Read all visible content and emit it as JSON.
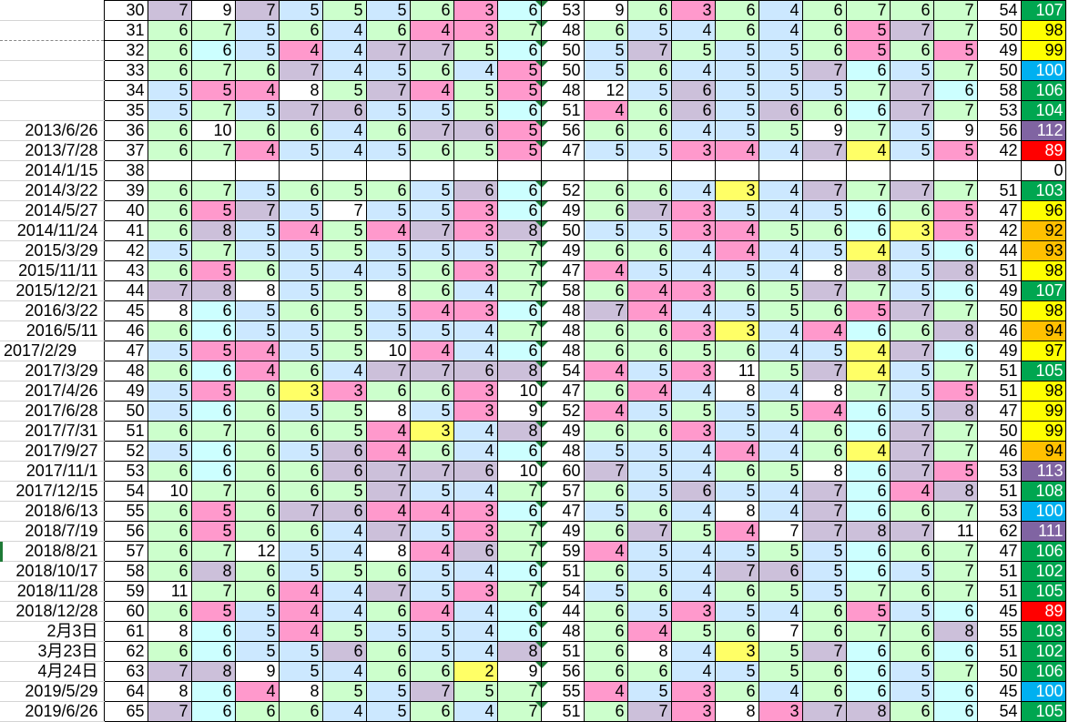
{
  "cell_colors": {
    "P": "#ccc0da",
    "G": "#ccffcc",
    "B": "#cce8ff",
    "C": "#ccffff",
    "K": "#ff99cc",
    "Y": "#ffff66",
    "W": "#ffffff"
  },
  "total_colors": {
    "green": "#00a650",
    "yellow": "#ffff00",
    "orange": "#ffc000",
    "blue": "#00b0f0",
    "red": "#ff0000",
    "purple": "#8064a2",
    "white": "#ffffff"
  },
  "rows": [
    {
      "date": "",
      "no": 30,
      "a": "7P 9W 7P 5B 5G 5B 6G 3K 6C",
      "s1": 53,
      "b": "9W 6G 3K 6G 4B 6G 7G 6G 7G",
      "s2": 54,
      "total": 107,
      "tc": "green"
    },
    {
      "date": "",
      "no": 31,
      "a": "6G 7G 5B 6G 4B 6G 4K 3K 7G",
      "s1": 48,
      "b": "6G 5B 4B 6G 4B 6G 5K 7P 7G",
      "s2": 50,
      "total": 98,
      "tc": "yellow"
    },
    {
      "date": "",
      "no": 32,
      "a": "6G 6C 5B 4K 4B 7P 7P 5G 6C",
      "s1": 50,
      "b": "5B 7P 5G 5B 5B 6G 5K 6G 5K",
      "s2": 49,
      "total": 99,
      "tc": "yellow"
    },
    {
      "date": "",
      "no": 33,
      "a": "6G 7G 6G 7P 4B 5B 6G 4B 5K",
      "s1": 50,
      "b": "5B 6G 4B 5B 5B 7P 6C 5B 7G",
      "s2": 50,
      "total": 100,
      "tc": "blue"
    },
    {
      "date": "",
      "no": 34,
      "a": "5B 5K 4K 8W 5G 7P 4K 5G 5K",
      "s1": 48,
      "b": "12W 5B 6P 5B 5B 5B 7G 7P 6C",
      "s2": 58,
      "total": 106,
      "tc": "green"
    },
    {
      "date": "",
      "no": 35,
      "a": "5B 7G 5B 7P 6P 5B 5B 5G 6C",
      "s1": 51,
      "b": "4K 6G 6P 5B 6P 6G 6C 7P 7G",
      "s2": 53,
      "total": 104,
      "tc": "green"
    },
    {
      "date": "2013/6/26",
      "no": 36,
      "a": "6G 10W 6G 6G 4B 6G 7P 6P 5K",
      "s1": 56,
      "b": "6G 6G 4B 5B 5G 9W 7G 5B 9W",
      "s2": 56,
      "total": 112,
      "tc": "purple"
    },
    {
      "date": "2013/7/28",
      "no": 37,
      "a": "6G 7G 4K 5B 4B 5B 6G 5G 5K",
      "s1": 47,
      "b": "5B 5B 3K 4K 4B 7P 4Y 5B 5K",
      "s2": 42,
      "total": 89,
      "tc": "red"
    },
    {
      "date": "2014/1/15",
      "no": 38,
      "a": "",
      "s1": "",
      "b": "",
      "s2": "",
      "total": 0,
      "tc": "white"
    },
    {
      "date": "2014/3/22",
      "no": 39,
      "a": "6G 7G 5B 6G 5G 6G 5B 6P 6C",
      "s1": 52,
      "b": "6G 6G 4B 3Y 4B 7P 7G 7P 7G",
      "s2": 51,
      "total": 103,
      "tc": "green"
    },
    {
      "date": "2014/5/27",
      "no": 40,
      "a": "6G 5K 7P 5B 7W 5B 5B 3K 6C",
      "s1": 49,
      "b": "6G 7P 3K 5B 4B 5B 6C 6G 5K",
      "s2": 47,
      "total": 96,
      "tc": "yellow"
    },
    {
      "date": "2014/11/24",
      "no": 41,
      "a": "6G 8P 5B 4K 5G 4K 7P 3K 8P",
      "s1": 50,
      "b": "5B 5B 3K 4K 5G 6G 6C 3Y 5K",
      "s2": 42,
      "total": 92,
      "tc": "orange"
    },
    {
      "date": "2015/3/29",
      "no": 42,
      "a": "5B 7G 5B 5B 5G 5B 5B 5B 7G",
      "s1": 49,
      "b": "6G 6G 4B 4K 4B 5B 4Y 5B 6C",
      "s2": 44,
      "total": 93,
      "tc": "orange"
    },
    {
      "date": "2015/11/11",
      "no": 43,
      "a": "6G 5K 6G 5B 4B 5B 6G 3K 7G",
      "s1": 47,
      "b": "4K 5B 4B 5B 4B 8W 8P 5B 8P",
      "s2": 51,
      "total": 98,
      "tc": "yellow"
    },
    {
      "date": "2015/12/21",
      "no": 44,
      "a": "7P 8P 8W 5B 5G 8W 6G 4B 7G",
      "s1": 58,
      "b": "6G 4K 3K 6G 5G 7P 7G 5B 6C",
      "s2": 49,
      "total": 107,
      "tc": "green"
    },
    {
      "date": "2016/3/22",
      "no": 45,
      "a": "8W 6C 5B 6G 5G 5B 4K 3K 6C",
      "s1": 48,
      "b": "7P 4K 4B 5B 5G 6G 5K 7P 7G",
      "s2": 50,
      "total": 98,
      "tc": "yellow"
    },
    {
      "date": "2016/5/11",
      "no": 46,
      "a": "6G 6C 5B 5B 5G 5B 5B 4B 7G",
      "s1": 48,
      "b": "6G 6G 3K 3Y 4B 4K 6C 6G 8P",
      "s2": 46,
      "total": 94,
      "tc": "orange"
    },
    {
      "date": "2017/2/29",
      "no": 47,
      "a": "5B 5K 4K 5B 5G 10W 4K 4B 6C",
      "s1": 48,
      "b": "6G 6G 5G 6G 4B 5B 4Y 7P 6C",
      "s2": 49,
      "total": 97,
      "tc": "yellow",
      "left": true
    },
    {
      "date": "2017/3/29",
      "no": 48,
      "a": "6G 6C 4K 6G 4B 7P 7P 6P 8P",
      "s1": 54,
      "b": "4K 5B 3K 11W 5G 7P 4Y 5B 7G",
      "s2": 51,
      "total": 105,
      "tc": "green"
    },
    {
      "date": "2017/4/26",
      "no": 49,
      "a": "5B 5K 6G 3Y 3K 6G 6G 3K 10W",
      "s1": 47,
      "b": "6G 4K 4B 8W 4B 8W 7G 5B 5K",
      "s2": 51,
      "total": 98,
      "tc": "yellow"
    },
    {
      "date": "2017/6/28",
      "no": 50,
      "a": "5B 6C 6G 5B 5G 8W 5B 3K 9W",
      "s1": 52,
      "b": "4K 5B 5G 5B 5G 4K 6C 5B 8P",
      "s2": 47,
      "total": 99,
      "tc": "yellow"
    },
    {
      "date": "2017/7/31",
      "no": 51,
      "a": "6G 7G 6G 6G 5G 4K 3Y 4B 8P",
      "s1": 49,
      "b": "6G 6G 3K 5B 4B 6G 6C 7P 7G",
      "s2": 50,
      "total": 99,
      "tc": "yellow"
    },
    {
      "date": "2017/9/27",
      "no": 52,
      "a": "5B 6C 6G 5B 6P 4K 6G 4B 6C",
      "s1": 48,
      "b": "5B 5B 4B 4K 4B 6G 4Y 7P 7G",
      "s2": 46,
      "total": 94,
      "tc": "orange"
    },
    {
      "date": "2017/11/1",
      "no": 53,
      "a": "6G 6C 6G 6G 6P 7P 7P 6P 10W",
      "s1": 60,
      "b": "7P 5B 4B 6G 5G 8W 6C 7P 5K",
      "s2": 53,
      "total": 113,
      "tc": "purple"
    },
    {
      "date": "2017/12/15",
      "no": 54,
      "a": "10W 7G 6G 6G 5G 7P 5B 4B 7G",
      "s1": 57,
      "b": "6G 5B 6P 5B 4B 7P 6C 4K 8P",
      "s2": 51,
      "total": 108,
      "tc": "green"
    },
    {
      "date": "2018/6/13",
      "no": 55,
      "a": "6G 5K 6G 7P 6P 4K 4K 3K 6C",
      "s1": 47,
      "b": "5B 6G 4B 8W 4B 7P 6C 6G 7G",
      "s2": 53,
      "total": 100,
      "tc": "blue"
    },
    {
      "date": "2018/7/19",
      "no": 56,
      "a": "6G 5K 6G 6G 4B 7P 5B 3K 7G",
      "s1": 49,
      "b": "6G 7P 5G 4K 7W 7P 8P 7P 11W",
      "s2": 62,
      "total": 111,
      "tc": "purple"
    },
    {
      "date": "2018/8/21",
      "no": 57,
      "a": "6G 7G 12W 5B 4B 8W 4K 6P 7G",
      "s1": 59,
      "b": "4K 5B 4B 5B 5G 5B 6C 6G 7G",
      "s2": 47,
      "total": 106,
      "tc": "green"
    },
    {
      "date": "2018/10/17",
      "no": 58,
      "a": "6G 8P 6G 5B 5G 6G 5B 4B 6C",
      "s1": 51,
      "b": "6G 5B 4B 7P 6P 5B 6C 5B 7G",
      "s2": 51,
      "total": 102,
      "tc": "green"
    },
    {
      "date": "2018/11/28",
      "no": 59,
      "a": "11W 7G 6G 4K 4B 7P 5B 3K 7G",
      "s1": 54,
      "b": "5B 6G 4B 6G 5G 5B 7G 6G 7G",
      "s2": 51,
      "total": 105,
      "tc": "green"
    },
    {
      "date": "2018/12/28",
      "no": 60,
      "a": "6G 5K 5B 4K 4B 6G 4K 4B 6C",
      "s1": 44,
      "b": "6G 5B 3K 5B 4B 6G 5K 5B 6C",
      "s2": 45,
      "total": 89,
      "tc": "red"
    },
    {
      "date": "2月3日",
      "no": 61,
      "a": "8W 6C 5B 4K 5G 5B 5B 4B 6C",
      "s1": 48,
      "b": "6G 4K 5G 6G 7W 6G 7G 6G 8P",
      "s2": 55,
      "total": 103,
      "tc": "green"
    },
    {
      "date": "3月23日",
      "no": 62,
      "a": "6G 6C 5B 5B 6P 6G 5B 4B 8P",
      "s1": 51,
      "b": "6G 8W 4B 3Y 5G 7P 6C 6G 6C",
      "s2": 51,
      "total": 102,
      "tc": "green"
    },
    {
      "date": "4月24日",
      "no": 63,
      "a": "7P 8P 9W 5B 4B 6G 6G 2Y 9W",
      "s1": 56,
      "b": "6G 6G 4B 5B 5G 6G 6C 5B 7G",
      "s2": 50,
      "total": 106,
      "tc": "green"
    },
    {
      "date": "2019/5/29",
      "no": 64,
      "a": "8W 6C 4K 8W 5G 5B 7P 5G 7G",
      "s1": 55,
      "b": "4K 5B 3K 6G 4B 6G 6C 5B 6C",
      "s2": 45,
      "total": 100,
      "tc": "blue"
    },
    {
      "date": "2019/6/26",
      "no": 65,
      "a": "7P 6C 6G 6G 4B 5B 6G 4B 7G",
      "s1": 51,
      "b": "6G 7P 3K 8W 3K 7P 8P 6G 6C",
      "s2": 54,
      "total": 105,
      "tc": "green"
    }
  ]
}
